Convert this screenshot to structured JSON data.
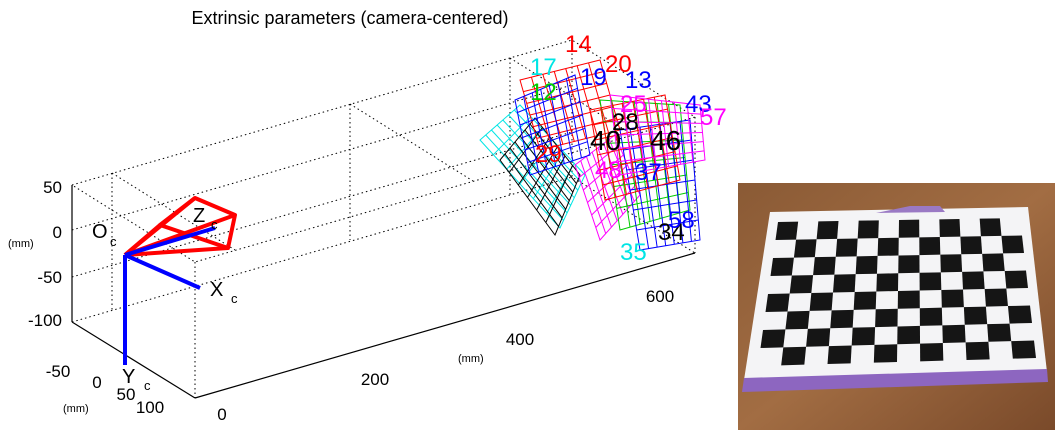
{
  "plot": {
    "title": "Extrinsic parameters (camera-centered)",
    "vertical_axis": {
      "ticks": [
        "50",
        "0",
        "-50",
        "-100"
      ],
      "unit": "(mm)"
    },
    "lateral_axis": {
      "ticks": [
        "-50",
        "0",
        "50",
        "100"
      ],
      "unit": "(mm)"
    },
    "depth_axis": {
      "ticks": [
        "0",
        "200",
        "400",
        "600"
      ],
      "unit": "(mm)"
    },
    "camera": {
      "origin": "O",
      "origin_sub": "c",
      "x": "X",
      "x_sub": "c",
      "y": "Y",
      "y_sub": "c",
      "z": "Z",
      "z_sub": "c"
    },
    "board_labels": [
      {
        "text": "14",
        "color": "#ff0000"
      },
      {
        "text": "17",
        "color": "#00e5e5"
      },
      {
        "text": "20",
        "color": "#ff0000"
      },
      {
        "text": "13",
        "color": "#0000ff"
      },
      {
        "text": "19",
        "color": "#0000ff"
      },
      {
        "text": "12",
        "color": "#00cc00"
      },
      {
        "text": "25",
        "color": "#ff00ff"
      },
      {
        "text": "28",
        "color": "#000000"
      },
      {
        "text": "43",
        "color": "#0000ff"
      },
      {
        "text": "57",
        "color": "#ff00ff"
      },
      {
        "text": "40",
        "color": "#000000"
      },
      {
        "text": "46",
        "color": "#000000"
      },
      {
        "text": "29",
        "color": "#ff0000"
      },
      {
        "text": "48",
        "color": "#ff00ff"
      },
      {
        "text": "37",
        "color": "#0000ff"
      },
      {
        "text": "35",
        "color": "#00e5e5"
      },
      {
        "text": "34",
        "color": "#000000"
      },
      {
        "text": "58",
        "color": "#0000ff"
      }
    ]
  }
}
